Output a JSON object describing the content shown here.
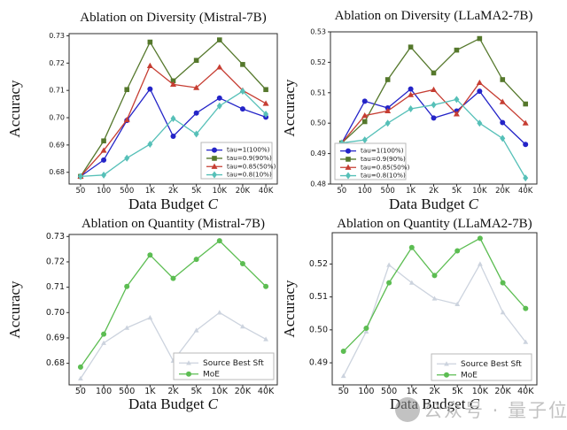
{
  "figure": {
    "background": "#ffffff",
    "xlabel": "Data Budget",
    "xlabel_var": "C",
    "ylabel": "Accuracy"
  },
  "watermark": {
    "logo": "qbitai-logo-circle",
    "text": "公众号 · 量子位",
    "color": "#bcbcbc"
  },
  "chart_data": [
    {
      "id": "diversity-mistral",
      "type": "line",
      "title": "Ablation on Diversity (Mistral-7B)",
      "xlabel": "Data Budget",
      "xlabel_var": "C",
      "ylabel": "Accuracy",
      "categories": [
        "50",
        "100",
        "500",
        "1K",
        "2K",
        "5K",
        "10K",
        "20K",
        "40K"
      ],
      "ylim": [
        0.6757,
        0.7308
      ],
      "yticks": [
        0.68,
        0.69,
        0.7,
        0.71,
        0.72,
        0.73
      ],
      "grid": false,
      "legend_position": "lower right",
      "series": [
        {
          "name": "tau=1(100%)",
          "color": "#2424c8",
          "marker": "circle",
          "values": [
            0.6785,
            0.6845,
            0.699,
            0.7105,
            0.6932,
            0.7017,
            0.7072,
            0.7032,
            0.7002
          ]
        },
        {
          "name": "tau=0.9(90%)",
          "color": "#55782c",
          "marker": "square",
          "values": [
            0.6785,
            0.6915,
            0.7103,
            0.7277,
            0.7135,
            0.721,
            0.7285,
            0.7195,
            0.7103
          ]
        },
        {
          "name": "tau=0.85(50%)",
          "color": "#c63d32",
          "marker": "triangle",
          "values": [
            0.6785,
            0.688,
            0.6992,
            0.719,
            0.7122,
            0.711,
            0.7185,
            0.71,
            0.7052
          ]
        },
        {
          "name": "tau=0.8(10%)",
          "color": "#56c0b8",
          "marker": "diamond",
          "values": [
            0.6785,
            0.679,
            0.6852,
            0.6903,
            0.6997,
            0.694,
            0.7043,
            0.7097,
            0.7013
          ]
        }
      ]
    },
    {
      "id": "diversity-llama2",
      "type": "line",
      "title": "Ablation on Diversity (LLaMA2-7B)",
      "xlabel": "Data Budget",
      "xlabel_var": "C",
      "ylabel": "Accuracy",
      "categories": [
        "50",
        "100",
        "500",
        "1K",
        "2K",
        "5K",
        "10K",
        "20K",
        "40K"
      ],
      "ylim": [
        0.48,
        0.53
      ],
      "yticks": [
        0.48,
        0.49,
        0.5,
        0.51,
        0.52,
        0.53
      ],
      "grid": false,
      "legend_position": "lower left",
      "series": [
        {
          "name": "tau=1(100%)",
          "color": "#2424c8",
          "marker": "circle",
          "values": [
            0.4935,
            0.5072,
            0.505,
            0.5112,
            0.5017,
            0.504,
            0.5105,
            0.5002,
            0.493
          ]
        },
        {
          "name": "tau=0.9(90%)",
          "color": "#55782c",
          "marker": "square",
          "values": [
            0.4935,
            0.5005,
            0.5143,
            0.525,
            0.5165,
            0.524,
            0.5278,
            0.5143,
            0.5063
          ]
        },
        {
          "name": "tau=0.85(50%)",
          "color": "#c63d32",
          "marker": "triangle",
          "values": [
            0.4935,
            0.5025,
            0.504,
            0.5093,
            0.511,
            0.503,
            0.5133,
            0.507,
            0.5
          ]
        },
        {
          "name": "tau=0.8(10%)",
          "color": "#56c0b8",
          "marker": "diamond",
          "values": [
            0.4935,
            0.4945,
            0.5,
            0.5047,
            0.506,
            0.5078,
            0.5,
            0.495,
            0.482
          ]
        }
      ]
    },
    {
      "id": "quantity-mistral",
      "type": "line",
      "title": "Ablation on Quantity (Mistral-7B)",
      "xlabel": "Data Budget",
      "xlabel_var": "C",
      "ylabel": "Accuracy",
      "categories": [
        "50",
        "100",
        "500",
        "1K",
        "2K",
        "5K",
        "10K",
        "20K",
        "40K"
      ],
      "ylim": [
        0.6715,
        0.7308
      ],
      "yticks": [
        0.68,
        0.69,
        0.7,
        0.71,
        0.72,
        0.73
      ],
      "grid": false,
      "legend_position": "lower right",
      "series": [
        {
          "name": "Source Best Sft",
          "color": "#ccd3de",
          "marker": "tri-small",
          "values": [
            0.674,
            0.688,
            0.694,
            0.698,
            0.681,
            0.693,
            0.7,
            0.6945,
            0.6895
          ]
        },
        {
          "name": "MoE",
          "color": "#5cbd52",
          "marker": "circle",
          "values": [
            0.6785,
            0.6915,
            0.7103,
            0.7227,
            0.7135,
            0.721,
            0.7283,
            0.7193,
            0.7103
          ]
        }
      ]
    },
    {
      "id": "quantity-llama2",
      "type": "line",
      "title": "Ablation on Quantity (LLaMA2-7B)",
      "xlabel": "Data Budget",
      "xlabel_var": "C",
      "ylabel": "Accuracy",
      "categories": [
        "50",
        "100",
        "500",
        "1K",
        "2K",
        "5K",
        "10K",
        "20K",
        "40K"
      ],
      "ylim": [
        0.4833,
        0.5295
      ],
      "yticks": [
        0.49,
        0.5,
        0.51,
        0.52
      ],
      "grid": false,
      "legend_position": "lower right",
      "series": [
        {
          "name": "Source Best Sft",
          "color": "#ccd3de",
          "marker": "tri-small",
          "values": [
            0.486,
            0.4995,
            0.5197,
            0.5143,
            0.5095,
            0.5078,
            0.52,
            0.5053,
            0.4963
          ]
        },
        {
          "name": "MoE",
          "color": "#5cbd52",
          "marker": "circle",
          "values": [
            0.4935,
            0.5005,
            0.5143,
            0.525,
            0.5165,
            0.524,
            0.5278,
            0.5143,
            0.5065
          ]
        }
      ]
    }
  ]
}
